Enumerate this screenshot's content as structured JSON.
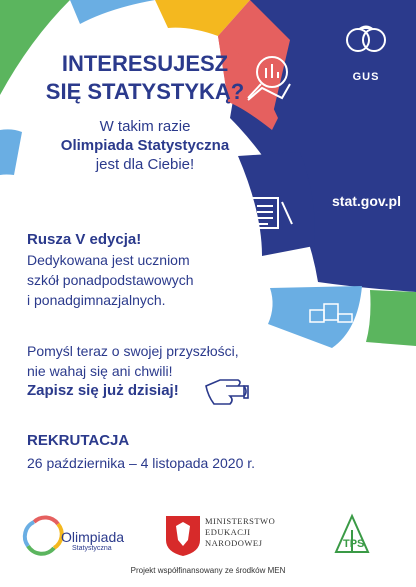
{
  "headline": {
    "line1": "INTERESUJESZ",
    "line2": "SIĘ STATYSTYKĄ?"
  },
  "intro": {
    "line1": "W takim razie",
    "line2": "Olimpiada Statystyczna",
    "line3": "jest dla Ciebie!"
  },
  "edition": {
    "title": "Rusza V edycja!",
    "line1": "Dedykowana jest uczniom",
    "line2": "szkół ponadpodstawowych",
    "line3": "i ponadgimnazjalnych."
  },
  "call": {
    "line1": "Pomyśl teraz o swojej przyszłości,",
    "line2": "nie wahaj się ani chwili!",
    "line3": "Zapisz się już dzisiaj!"
  },
  "recruitment": {
    "label": "REKRUTACJA",
    "dates": "26 października – 4 listopada 2020 r."
  },
  "brand": {
    "gus": "GUS",
    "site": "stat.gov.pl"
  },
  "logos": {
    "olimpiada": "Olimpiada",
    "olimpiada_sub": "Statystyczna",
    "men_line1": "MINISTERSTWO",
    "men_line2": "EDUKACJI",
    "men_line3": "NARODOWEJ",
    "tps": "TPS"
  },
  "footer": "Projekt współfinansowany ze środków MEN",
  "colors": {
    "navy": "#2b3a8c",
    "red": "#e5605f",
    "yellow": "#f4b81f",
    "green": "#5bb55e",
    "light_blue": "#6aaee3",
    "blue_dark": "#243a8a"
  }
}
